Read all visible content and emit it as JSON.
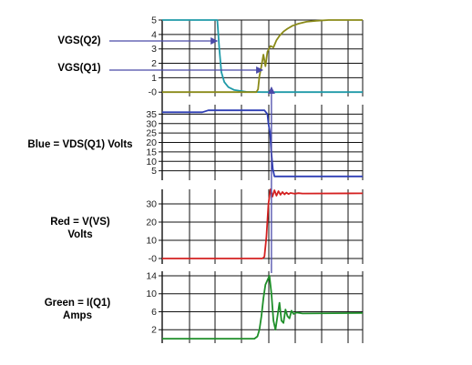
{
  "labels": {
    "vgs_q2": "VGS(Q2)",
    "vgs_q1": "VGS(Q1)",
    "vds_line1": "Blue = VDS(Q1) Volts",
    "vs_line1": "Red = V(VS)",
    "vs_line2": "Volts",
    "iq1_line1": "Green = I(Q1)",
    "iq1_line2": "Amps"
  },
  "colors": {
    "background": "#ffffff",
    "grid": "#111111",
    "vgs_q2": "#1f9aa8",
    "vgs_q1": "#8a8a18",
    "vds": "#2f3fb5",
    "vs": "#d42020",
    "iq1": "#1f8f2a",
    "arrow": "#4a4aa8"
  },
  "chart_data": [
    {
      "type": "line",
      "panel": "vgs",
      "y_ticks": [
        "5",
        "4",
        "3",
        "2",
        "1",
        "-0"
      ],
      "y_tick_values": [
        5,
        4,
        3,
        2,
        1,
        0
      ],
      "ylim": [
        -0.3,
        5
      ],
      "xlim": [
        0,
        10
      ],
      "grid": true,
      "series": [
        {
          "key": "vgs_q2",
          "name": "VGS(Q2)",
          "points": [
            [
              0,
              5
            ],
            [
              2.75,
              5
            ],
            [
              2.85,
              3
            ],
            [
              2.95,
              1.4
            ],
            [
              3.1,
              0.7
            ],
            [
              3.3,
              0.35
            ],
            [
              3.6,
              0.15
            ],
            [
              4.2,
              0.02
            ],
            [
              5,
              0
            ],
            [
              10,
              0
            ]
          ]
        },
        {
          "key": "vgs_q1",
          "name": "VGS(Q1)",
          "points": [
            [
              0,
              0
            ],
            [
              3.5,
              0
            ],
            [
              4.7,
              0
            ],
            [
              4.78,
              0.2
            ],
            [
              4.85,
              1.1
            ],
            [
              4.95,
              1.8
            ],
            [
              5.05,
              2.6
            ],
            [
              5.15,
              1.8
            ],
            [
              5.25,
              2.8
            ],
            [
              5.4,
              3.2
            ],
            [
              5.55,
              3.1
            ],
            [
              5.7,
              3.6
            ],
            [
              5.85,
              3.9
            ],
            [
              6.05,
              4.2
            ],
            [
              6.25,
              4.4
            ],
            [
              6.5,
              4.6
            ],
            [
              6.8,
              4.75
            ],
            [
              7.2,
              4.88
            ],
            [
              7.7,
              4.95
            ],
            [
              8.3,
              5
            ],
            [
              10,
              5
            ]
          ]
        }
      ]
    },
    {
      "type": "line",
      "panel": "vds",
      "y_ticks": [
        "35",
        "30",
        "25",
        "20",
        "15",
        "10",
        "5"
      ],
      "y_tick_values": [
        35,
        30,
        25,
        20,
        15,
        10,
        5
      ],
      "ylim": [
        0,
        40
      ],
      "xlim": [
        0,
        10
      ],
      "grid": true,
      "series": [
        {
          "key": "vds",
          "name": "Blue = VDS(Q1) Volts",
          "points": [
            [
              0,
              36
            ],
            [
              2.0,
              36
            ],
            [
              2.3,
              37
            ],
            [
              5.1,
              37
            ],
            [
              5.25,
              35
            ],
            [
              5.3,
              30
            ],
            [
              5.38,
              25
            ],
            [
              5.45,
              14
            ],
            [
              5.52,
              6
            ],
            [
              5.6,
              2
            ],
            [
              10,
              2
            ]
          ]
        }
      ]
    },
    {
      "type": "line",
      "panel": "vs",
      "y_ticks": [
        "30",
        "20",
        "10",
        "-0"
      ],
      "y_tick_values": [
        30,
        20,
        10,
        0
      ],
      "ylim": [
        -3,
        38
      ],
      "xlim": [
        0,
        10
      ],
      "grid": true,
      "series": [
        {
          "key": "vs",
          "name": "Red = V(VS)",
          "points": [
            [
              0,
              0
            ],
            [
              5.0,
              0
            ],
            [
              5.1,
              1
            ],
            [
              5.2,
              12
            ],
            [
              5.3,
              30
            ],
            [
              5.4,
              38
            ],
            [
              5.5,
              34
            ],
            [
              5.6,
              37.5
            ],
            [
              5.7,
              34.5
            ],
            [
              5.8,
              37
            ],
            [
              5.9,
              35
            ],
            [
              6.0,
              36.5
            ],
            [
              6.1,
              35.2
            ],
            [
              6.2,
              36.2
            ],
            [
              6.3,
              35.4
            ],
            [
              6.4,
              36
            ],
            [
              6.6,
              35.6
            ],
            [
              6.8,
              35.9
            ],
            [
              7.0,
              35.7
            ],
            [
              10,
              35.8
            ]
          ]
        }
      ]
    },
    {
      "type": "line",
      "panel": "iq1",
      "y_ticks": [
        "14",
        "10",
        "6",
        "2"
      ],
      "y_tick_values": [
        14,
        10,
        6,
        2
      ],
      "ylim": [
        -1,
        15
      ],
      "xlim": [
        0,
        10
      ],
      "grid": true,
      "series": [
        {
          "key": "iq1",
          "name": "Green = I(Q1)",
          "points": [
            [
              0,
              0
            ],
            [
              4.6,
              0
            ],
            [
              4.75,
              0.5
            ],
            [
              4.85,
              2
            ],
            [
              4.95,
              5
            ],
            [
              5.05,
              9
            ],
            [
              5.15,
              12
            ],
            [
              5.25,
              13
            ],
            [
              5.35,
              14
            ],
            [
              5.45,
              10
            ],
            [
              5.55,
              4
            ],
            [
              5.65,
              2
            ],
            [
              5.75,
              5
            ],
            [
              5.85,
              8
            ],
            [
              5.95,
              4
            ],
            [
              6.05,
              3.5
            ],
            [
              6.15,
              6.5
            ],
            [
              6.25,
              5
            ],
            [
              6.35,
              4.5
            ],
            [
              6.45,
              6.2
            ],
            [
              6.55,
              5.5
            ],
            [
              6.7,
              5.8
            ],
            [
              7.0,
              5.6
            ],
            [
              10,
              5.7
            ]
          ]
        }
      ]
    }
  ]
}
